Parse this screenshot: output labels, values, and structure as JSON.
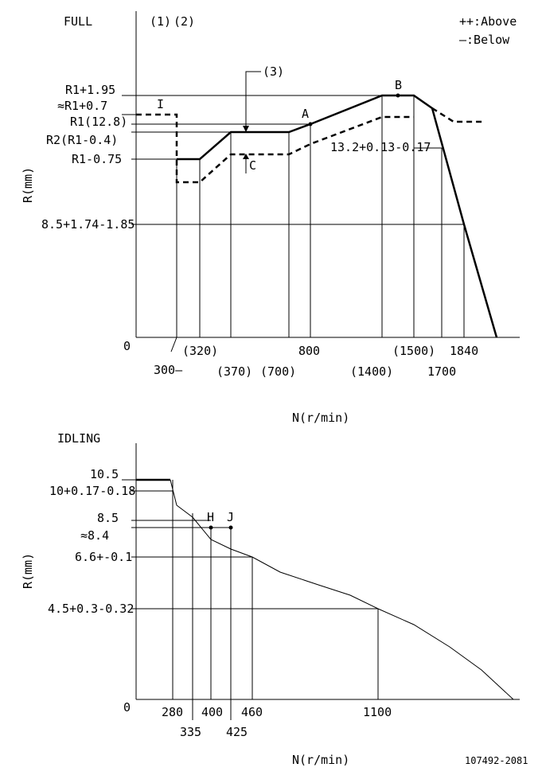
{
  "figure_id": "107492-2081",
  "legend": {
    "above": "++:Above",
    "below": "—:Below"
  },
  "chart_data": [
    {
      "type": "line",
      "title": "FULL",
      "ylabel": "R(mm)",
      "xlabel": "N(r/min)",
      "zero": "0",
      "notes": [
        "(1)",
        "(2)",
        "(3)"
      ],
      "y_labels": [
        "R1+1.95",
        "≈R1+0.7",
        "R1(12.8)",
        "R2(R1-0.4)",
        "R1-0.75",
        "8.5+1.74-1.85"
      ],
      "mid_label": "13.2+0.13-0.17",
      "x_labels": [
        "300—",
        "(320)",
        "(370)",
        "(700)",
        "800",
        "(1400)",
        "(1500)",
        "1700",
        "1840"
      ],
      "point_labels": [
        "I",
        "A",
        "B",
        "C"
      ],
      "series": [
        {
          "style": "solid",
          "points": [
            [
              320,
              0.02
            ],
            [
              370,
              0.9
            ],
            [
              700,
              0.9
            ],
            [
              800,
              1.2
            ],
            [
              1400,
              2.1
            ],
            [
              1500,
              2.1
            ],
            [
              1550,
              1.95
            ],
            [
              1700,
              0
            ],
            [
              1840,
              -2.6
            ],
            [
              1950,
              -6.7
            ]
          ]
        },
        {
          "style": "dashed",
          "points": [
            [
              170,
              1.15
            ],
            [
              300,
              1.15
            ],
            [
              300,
              -1.5
            ],
            [
              320,
              -1.5
            ],
            [
              370,
              -0.6
            ],
            [
              700,
              -0.6
            ],
            [
              800,
              -0.3
            ],
            [
              1400,
              1.0
            ],
            [
              1500,
              1.0
            ]
          ]
        },
        {
          "style": "dashed",
          "points": [
            [
              1550,
              1.95
            ],
            [
              1700,
              0.9
            ],
            [
              1800,
              0.9
            ]
          ]
        }
      ]
    },
    {
      "type": "line",
      "title": "IDLING",
      "ylabel": "R(mm)",
      "xlabel": "N(r/min)",
      "zero": "0",
      "y_labels": [
        "10.5",
        "10+0.17-0.18",
        "8.5",
        "≈8.4",
        "6.6+-0.1",
        "4.5+0.3-0.32"
      ],
      "x_labels": [
        "280",
        "335",
        "400",
        "460",
        "1100",
        "425"
      ],
      "point_labels": [
        "H",
        "J"
      ],
      "series": [
        {
          "style": "solid",
          "points": [
            [
              0,
              10.5
            ],
            [
              280,
              10.5
            ],
            [
              300,
              9.2
            ],
            [
              335,
              8.9
            ],
            [
              400,
              7.9
            ],
            [
              460,
              7.5
            ],
            [
              540,
              6.9
            ],
            [
              720,
              5.7
            ],
            [
              900,
              5.1
            ],
            [
              1100,
              4.5
            ],
            [
              1300,
              3.5
            ],
            [
              1500,
              2.1
            ],
            [
              1700,
              0.1
            ]
          ]
        }
      ],
      "markers": [
        {
          "label": "H",
          "point": [
            400,
            8.4
          ]
        },
        {
          "label": "J",
          "point": [
            425,
            8.4
          ]
        }
      ]
    }
  ]
}
